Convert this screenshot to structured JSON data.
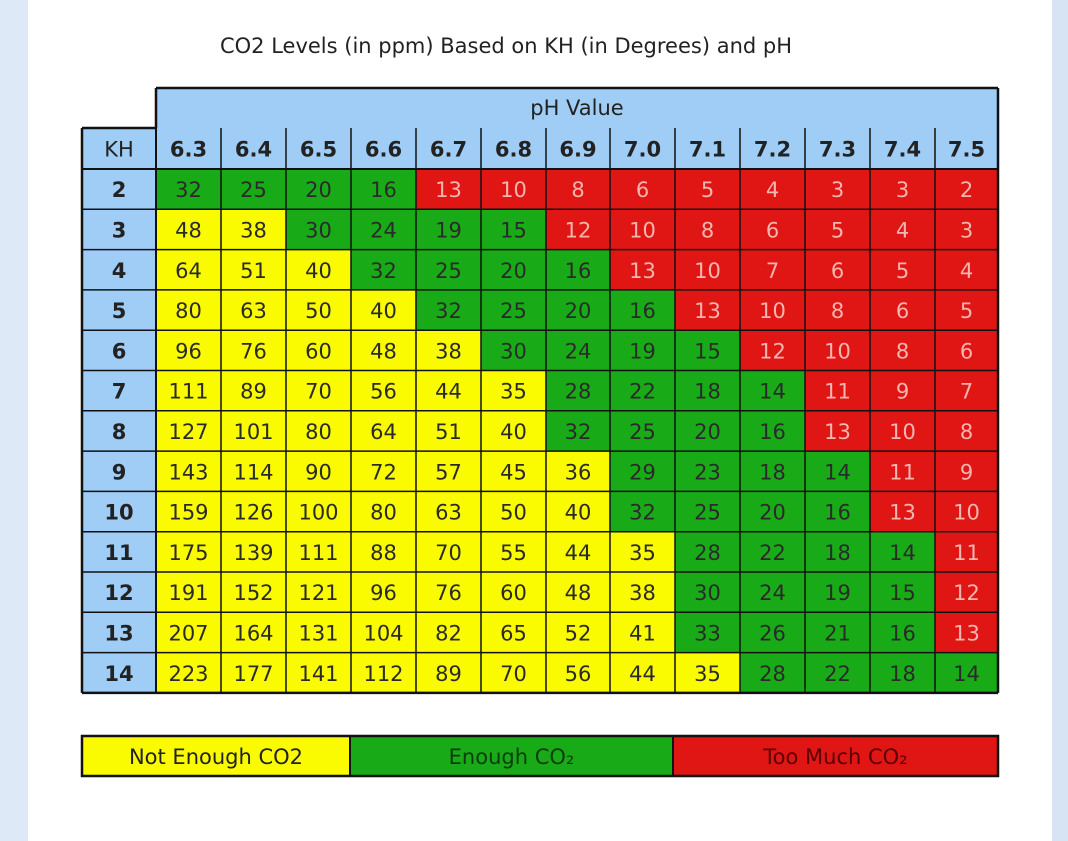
{
  "title": "CO2 Levels (in ppm) Based on KH (in Degrees) and pH",
  "colors": {
    "header_bg": "#9fcdf5",
    "not_enough": "#fafa00",
    "enough": "#19ab17",
    "too_much": "#df1614",
    "border": "#111111",
    "too_much_text": "#f5b5b0"
  },
  "chart_data": {
    "type": "table",
    "title": "CO2 Levels (in ppm) Based on KH (in Degrees) and pH",
    "col_group_label": "pH Value",
    "row_header_label": "KH",
    "ph_values": [
      "6.3",
      "6.4",
      "6.5",
      "6.6",
      "6.7",
      "6.8",
      "6.9",
      "7.0",
      "7.1",
      "7.2",
      "7.3",
      "7.4",
      "7.5"
    ],
    "kh_values": [
      "2",
      "3",
      "4",
      "5",
      "6",
      "7",
      "8",
      "9",
      "10",
      "11",
      "12",
      "13",
      "14"
    ],
    "values": [
      [
        32,
        25,
        20,
        16,
        13,
        10,
        8,
        6,
        5,
        4,
        3,
        3,
        2
      ],
      [
        48,
        38,
        30,
        24,
        19,
        15,
        12,
        10,
        8,
        6,
        5,
        4,
        3
      ],
      [
        64,
        51,
        40,
        32,
        25,
        20,
        16,
        13,
        10,
        7,
        6,
        5,
        4
      ],
      [
        80,
        63,
        50,
        40,
        32,
        25,
        20,
        16,
        13,
        10,
        8,
        6,
        5
      ],
      [
        96,
        76,
        60,
        48,
        38,
        30,
        24,
        19,
        15,
        12,
        10,
        8,
        6
      ],
      [
        111,
        89,
        70,
        56,
        44,
        35,
        28,
        22,
        18,
        14,
        11,
        9,
        7
      ],
      [
        127,
        101,
        80,
        64,
        51,
        40,
        32,
        25,
        20,
        16,
        13,
        10,
        8
      ],
      [
        143,
        114,
        90,
        72,
        57,
        45,
        36,
        29,
        23,
        18,
        14,
        11,
        9
      ],
      [
        159,
        126,
        100,
        80,
        63,
        50,
        40,
        32,
        25,
        20,
        16,
        13,
        10
      ],
      [
        175,
        139,
        111,
        88,
        70,
        55,
        44,
        35,
        28,
        22,
        18,
        14,
        11
      ],
      [
        191,
        152,
        121,
        96,
        76,
        60,
        48,
        38,
        30,
        24,
        19,
        15,
        12
      ],
      [
        207,
        164,
        131,
        104,
        82,
        65,
        52,
        41,
        33,
        26,
        21,
        16,
        13
      ],
      [
        223,
        177,
        141,
        112,
        89,
        70,
        56,
        44,
        35,
        28,
        22,
        18,
        14
      ]
    ],
    "categories": [
      [
        "enough",
        "enough",
        "enough",
        "enough",
        "too_much",
        "too_much",
        "too_much",
        "too_much",
        "too_much",
        "too_much",
        "too_much",
        "too_much",
        "too_much"
      ],
      [
        "not_enough",
        "not_enough",
        "enough",
        "enough",
        "enough",
        "enough",
        "too_much",
        "too_much",
        "too_much",
        "too_much",
        "too_much",
        "too_much",
        "too_much"
      ],
      [
        "not_enough",
        "not_enough",
        "not_enough",
        "enough",
        "enough",
        "enough",
        "enough",
        "too_much",
        "too_much",
        "too_much",
        "too_much",
        "too_much",
        "too_much"
      ],
      [
        "not_enough",
        "not_enough",
        "not_enough",
        "not_enough",
        "enough",
        "enough",
        "enough",
        "enough",
        "too_much",
        "too_much",
        "too_much",
        "too_much",
        "too_much"
      ],
      [
        "not_enough",
        "not_enough",
        "not_enough",
        "not_enough",
        "not_enough",
        "enough",
        "enough",
        "enough",
        "enough",
        "too_much",
        "too_much",
        "too_much",
        "too_much"
      ],
      [
        "not_enough",
        "not_enough",
        "not_enough",
        "not_enough",
        "not_enough",
        "not_enough",
        "enough",
        "enough",
        "enough",
        "enough",
        "too_much",
        "too_much",
        "too_much"
      ],
      [
        "not_enough",
        "not_enough",
        "not_enough",
        "not_enough",
        "not_enough",
        "not_enough",
        "enough",
        "enough",
        "enough",
        "enough",
        "too_much",
        "too_much",
        "too_much"
      ],
      [
        "not_enough",
        "not_enough",
        "not_enough",
        "not_enough",
        "not_enough",
        "not_enough",
        "not_enough",
        "enough",
        "enough",
        "enough",
        "enough",
        "too_much",
        "too_much"
      ],
      [
        "not_enough",
        "not_enough",
        "not_enough",
        "not_enough",
        "not_enough",
        "not_enough",
        "not_enough",
        "enough",
        "enough",
        "enough",
        "enough",
        "too_much",
        "too_much"
      ],
      [
        "not_enough",
        "not_enough",
        "not_enough",
        "not_enough",
        "not_enough",
        "not_enough",
        "not_enough",
        "not_enough",
        "enough",
        "enough",
        "enough",
        "enough",
        "too_much"
      ],
      [
        "not_enough",
        "not_enough",
        "not_enough",
        "not_enough",
        "not_enough",
        "not_enough",
        "not_enough",
        "not_enough",
        "enough",
        "enough",
        "enough",
        "enough",
        "too_much"
      ],
      [
        "not_enough",
        "not_enough",
        "not_enough",
        "not_enough",
        "not_enough",
        "not_enough",
        "not_enough",
        "not_enough",
        "enough",
        "enough",
        "enough",
        "enough",
        "too_much"
      ],
      [
        "not_enough",
        "not_enough",
        "not_enough",
        "not_enough",
        "not_enough",
        "not_enough",
        "not_enough",
        "not_enough",
        "not_enough",
        "enough",
        "enough",
        "enough",
        "enough"
      ]
    ],
    "legend": [
      {
        "key": "not_enough",
        "label": "Not Enough CO2"
      },
      {
        "key": "enough",
        "label": "Enough CO₂"
      },
      {
        "key": "too_much",
        "label": "Too Much CO₂"
      }
    ]
  }
}
